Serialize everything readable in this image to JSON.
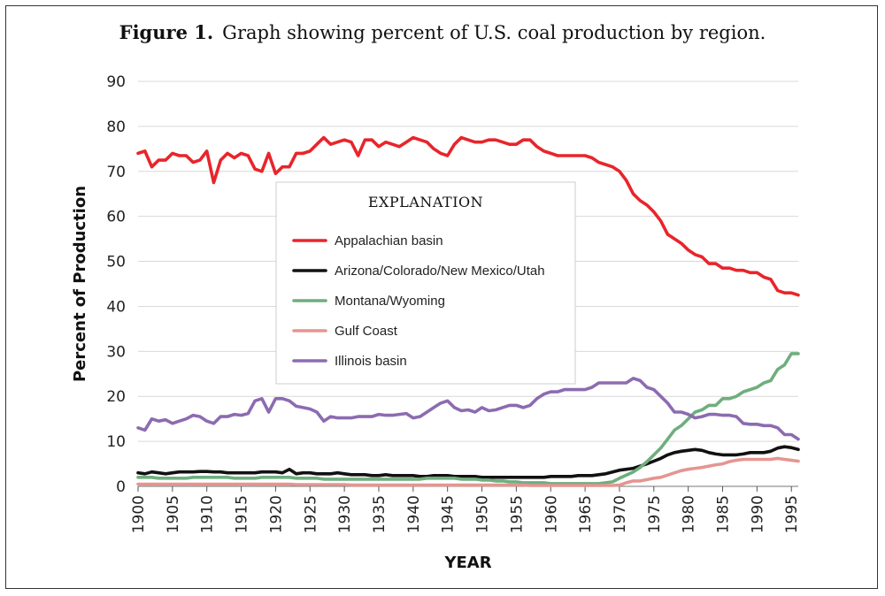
{
  "caption": {
    "figure_label": "Figure 1.",
    "text": "Graph showing percent of U.S. coal production by region."
  },
  "chart_data": {
    "type": "line",
    "title": "Graph showing percent of U.S. coal production by region.",
    "xlabel": "YEAR",
    "ylabel": "Percent of Production",
    "xlim": [
      1900,
      1996
    ],
    "ylim": [
      0,
      90
    ],
    "xticks": [
      1900,
      1905,
      1910,
      1915,
      1920,
      1925,
      1930,
      1935,
      1940,
      1945,
      1950,
      1955,
      1960,
      1965,
      1970,
      1975,
      1980,
      1985,
      1990,
      1995
    ],
    "yticks": [
      0,
      10,
      20,
      30,
      40,
      50,
      60,
      70,
      80,
      90
    ],
    "grid": true,
    "legend_title": "EXPLANATION",
    "legend_position": "center-left",
    "x": [
      1900,
      1901,
      1902,
      1903,
      1904,
      1905,
      1906,
      1907,
      1908,
      1909,
      1910,
      1911,
      1912,
      1913,
      1914,
      1915,
      1916,
      1917,
      1918,
      1919,
      1920,
      1921,
      1922,
      1923,
      1924,
      1925,
      1926,
      1927,
      1928,
      1929,
      1930,
      1931,
      1932,
      1933,
      1934,
      1935,
      1936,
      1937,
      1938,
      1939,
      1940,
      1941,
      1942,
      1943,
      1944,
      1945,
      1946,
      1947,
      1948,
      1949,
      1950,
      1951,
      1952,
      1953,
      1954,
      1955,
      1956,
      1957,
      1958,
      1959,
      1960,
      1961,
      1962,
      1963,
      1964,
      1965,
      1966,
      1967,
      1968,
      1969,
      1970,
      1971,
      1972,
      1973,
      1974,
      1975,
      1976,
      1977,
      1978,
      1979,
      1980,
      1981,
      1982,
      1983,
      1984,
      1985,
      1986,
      1987,
      1988,
      1989,
      1990,
      1991,
      1992,
      1993,
      1994,
      1995,
      1996
    ],
    "series": [
      {
        "name": "Appalachian basin",
        "color": "#e8252b",
        "values": [
          74,
          74.5,
          71,
          72.5,
          72.5,
          74,
          73.5,
          73.5,
          72,
          72.5,
          74.5,
          67.5,
          72.5,
          74,
          73,
          74,
          73.5,
          70.5,
          70,
          74,
          69.5,
          71,
          71,
          74,
          74,
          74.5,
          76,
          77.5,
          76,
          76.5,
          77,
          76.5,
          73.5,
          77,
          77,
          75.5,
          76.5,
          76,
          75.5,
          76.5,
          77.5,
          77,
          76.5,
          75,
          74,
          73.5,
          76,
          77.5,
          77,
          76.5,
          76.5,
          77,
          77,
          76.5,
          76,
          76,
          77,
          77,
          75.5,
          74.5,
          74,
          73.5,
          73.5,
          73.5,
          73.5,
          73.5,
          73,
          72,
          71.5,
          71,
          70,
          68,
          65,
          63.5,
          62.5,
          61,
          59,
          56,
          55,
          54,
          52.5,
          51.5,
          51,
          49.5,
          49.5,
          48.5,
          48.5,
          48,
          48,
          47.5,
          47.5,
          46.5,
          46,
          43.5,
          43,
          43,
          42.5
        ]
      },
      {
        "name": "Arizona/Colorado/New Mexico/Utah",
        "color": "#111111",
        "values": [
          3,
          2.8,
          3.2,
          3,
          2.8,
          3,
          3.2,
          3.2,
          3.2,
          3.3,
          3.3,
          3.2,
          3.2,
          3,
          3,
          3,
          3,
          3,
          3.2,
          3.2,
          3.2,
          3,
          3.8,
          2.8,
          3,
          3,
          2.8,
          2.8,
          2.8,
          3,
          2.8,
          2.6,
          2.6,
          2.6,
          2.4,
          2.4,
          2.6,
          2.4,
          2.4,
          2.4,
          2.4,
          2.2,
          2.2,
          2.4,
          2.4,
          2.4,
          2.2,
          2.2,
          2.2,
          2.2,
          2,
          2,
          2,
          2,
          2,
          2,
          2,
          2,
          2,
          2,
          2.2,
          2.2,
          2.2,
          2.2,
          2.4,
          2.4,
          2.4,
          2.6,
          2.8,
          3.2,
          3.6,
          3.8,
          4,
          4.5,
          5,
          5.6,
          6.2,
          7,
          7.5,
          7.8,
          8,
          8.2,
          8,
          7.5,
          7.2,
          7,
          7,
          7,
          7.2,
          7.5,
          7.5,
          7.5,
          7.8,
          8.5,
          8.8,
          8.6,
          8.2
        ]
      },
      {
        "name": "Montana/Wyoming",
        "color": "#6fae7e",
        "values": [
          2,
          2,
          2,
          1.8,
          1.8,
          1.8,
          1.8,
          1.8,
          2,
          2,
          2,
          2,
          2,
          2,
          1.8,
          1.8,
          1.8,
          1.8,
          2,
          2,
          2,
          2,
          2,
          1.8,
          1.8,
          1.8,
          1.8,
          1.6,
          1.6,
          1.6,
          1.6,
          1.6,
          1.6,
          1.6,
          1.6,
          1.6,
          1.6,
          1.6,
          1.6,
          1.6,
          1.6,
          1.6,
          1.8,
          1.8,
          1.8,
          1.8,
          1.8,
          1.6,
          1.6,
          1.6,
          1.4,
          1.4,
          1.2,
          1.2,
          1,
          1,
          0.8,
          0.8,
          0.8,
          0.8,
          0.6,
          0.6,
          0.6,
          0.6,
          0.6,
          0.6,
          0.6,
          0.6,
          0.8,
          1,
          1.8,
          2.5,
          3.2,
          4.2,
          5.5,
          7,
          8.5,
          10.5,
          12.5,
          13.5,
          15,
          16.5,
          17,
          18,
          18,
          19.5,
          19.5,
          20,
          21,
          21.5,
          22,
          23,
          23.5,
          26,
          27,
          29.5,
          29.5
        ]
      },
      {
        "name": "Gulf Coast",
        "color": "#e59590",
        "values": [
          0.5,
          0.5,
          0.5,
          0.5,
          0.5,
          0.5,
          0.5,
          0.5,
          0.5,
          0.5,
          0.5,
          0.5,
          0.5,
          0.5,
          0.5,
          0.5,
          0.5,
          0.5,
          0.5,
          0.5,
          0.5,
          0.5,
          0.5,
          0.4,
          0.4,
          0.4,
          0.4,
          0.4,
          0.4,
          0.4,
          0.4,
          0.3,
          0.3,
          0.3,
          0.3,
          0.3,
          0.3,
          0.3,
          0.3,
          0.3,
          0.3,
          0.3,
          0.3,
          0.3,
          0.3,
          0.3,
          0.3,
          0.3,
          0.3,
          0.3,
          0.3,
          0.3,
          0.3,
          0.3,
          0.3,
          0.3,
          0.3,
          0.2,
          0.2,
          0.2,
          0.2,
          0.2,
          0.2,
          0.2,
          0.2,
          0.2,
          0.2,
          0.2,
          0.2,
          0.2,
          0.3,
          0.8,
          1.2,
          1.2,
          1.5,
          1.8,
          2,
          2.5,
          3,
          3.5,
          3.8,
          4,
          4.2,
          4.5,
          4.8,
          5,
          5.5,
          5.8,
          6,
          6,
          6,
          6,
          6,
          6.2,
          6,
          5.8,
          5.6
        ]
      },
      {
        "name": "Illinois basin",
        "color": "#8c6bb1",
        "values": [
          13,
          12.5,
          15,
          14.5,
          14.8,
          14,
          14.5,
          15,
          15.8,
          15.5,
          14.5,
          14,
          15.5,
          15.5,
          16,
          15.8,
          16.2,
          19,
          19.5,
          16.5,
          19.5,
          19.5,
          19,
          17.8,
          17.5,
          17.2,
          16.5,
          14.5,
          15.5,
          15.2,
          15.2,
          15.2,
          15.5,
          15.5,
          15.5,
          16,
          15.8,
          15.8,
          16,
          16.2,
          15.2,
          15.5,
          16.5,
          17.5,
          18.5,
          19,
          17.5,
          16.8,
          17,
          16.5,
          17.5,
          16.8,
          17,
          17.5,
          18,
          18,
          17.5,
          18,
          19.5,
          20.5,
          21,
          21,
          21.5,
          21.5,
          21.5,
          21.5,
          22,
          23,
          23,
          23,
          23,
          23,
          24,
          23.5,
          22,
          21.5,
          20,
          18.5,
          16.5,
          16.5,
          16,
          15.2,
          15.5,
          16,
          16,
          15.8,
          15.8,
          15.5,
          14,
          13.8,
          13.8,
          13.5,
          13.5,
          13,
          11.5,
          11.5,
          10.5
        ]
      }
    ]
  }
}
